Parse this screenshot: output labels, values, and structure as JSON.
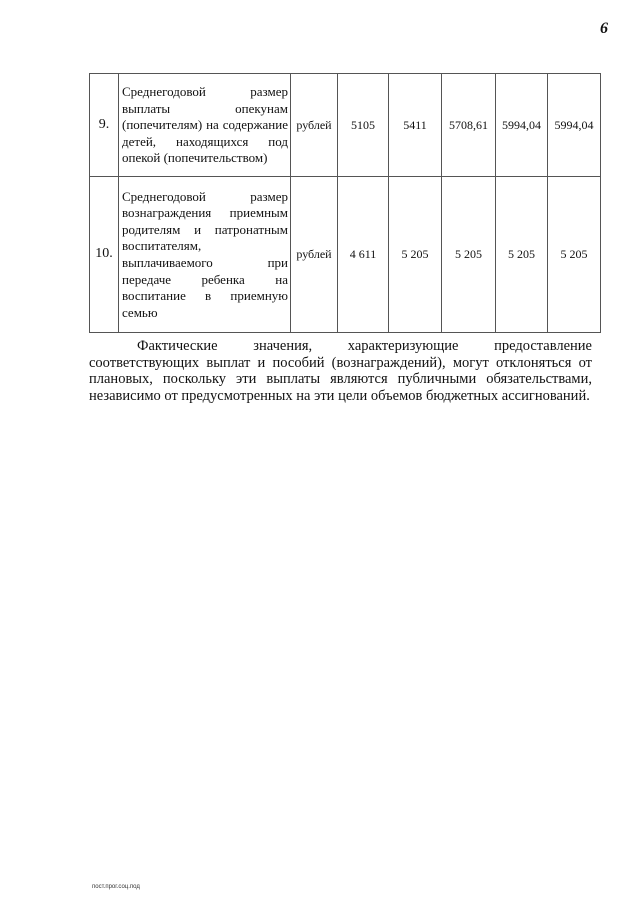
{
  "page_number": "6",
  "table": {
    "rows": [
      {
        "num": "9.",
        "description": "Среднегодовой размер выплаты опекунам (попечителям) на содержание детей, находящихся под опекой (попечительством)",
        "unit": "рублей",
        "values": [
          "5105",
          "5411",
          "5708,61",
          "5994,04",
          "5994,04"
        ]
      },
      {
        "num": "10.",
        "description": "Среднегодовой размер вознаграждения приемным родителям и патронатным воспитателям, выплачиваемого при передаче ребенка на воспитание в приемную семью",
        "unit": "рублей",
        "values": [
          "4 611",
          "5 205",
          "5 205",
          "5 205",
          "5 205"
        ]
      }
    ]
  },
  "paragraph": "Фактические значения, характеризующие предоставление соответствующих выплат и пособий (вознаграждений), могут отклоняться от плановых, поскольку эти выплаты являются публичными обязательствами, независимо от предусмотренных на эти цели объемов бюджетных ассигнований.",
  "footer": "пост.прог.соц.под"
}
